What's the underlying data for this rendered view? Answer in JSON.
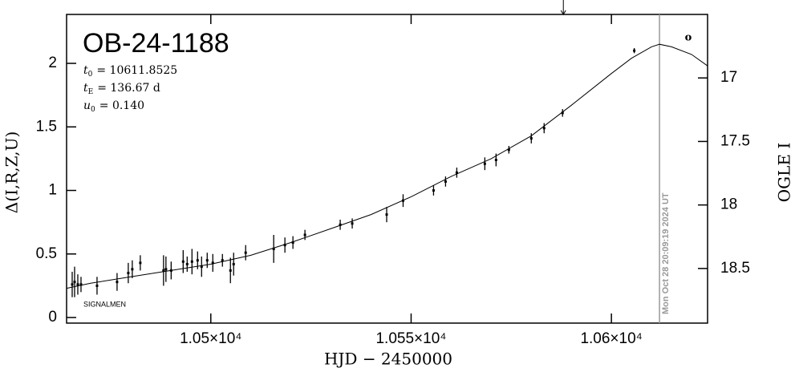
{
  "chart_data": {
    "type": "scatter",
    "title": "OB-24-1188",
    "parameters": [
      {
        "symbol": "t",
        "sub": "0",
        "text": "= 10611.8525"
      },
      {
        "symbol": "t",
        "sub": "E",
        "text": "= 136.67 d"
      },
      {
        "symbol": "u",
        "sub": "0",
        "text": "= 0.140"
      }
    ],
    "x_label": "HJD − 2450000",
    "y_label": "Δ(I,R,Z,U)",
    "y2_label": "OGLE I",
    "observer_label": "SIGNALMEN",
    "corner_mark": "o",
    "xlim": [
      10464,
      10624
    ],
    "xticks": [
      {
        "value": 10500,
        "label": "1.05×10⁴"
      },
      {
        "value": 10550,
        "label": "1.055×10⁴"
      },
      {
        "value": 10600,
        "label": "1.06×10⁴"
      }
    ],
    "ylim": [
      -0.044,
      2.385
    ],
    "yticks": [
      0,
      0.5,
      1,
      1.5,
      2
    ],
    "y2lim": [
      18.93,
      16.5
    ],
    "y2ticks": [
      17,
      17.5,
      18,
      18.5
    ],
    "now_line": {
      "x": 10612,
      "label": "Mon Oct 28 20:09:19 2024 UT",
      "color": "#999999"
    },
    "arrow_x": 10588,
    "series": [
      {
        "name": "data",
        "color": "#000000",
        "x": [
          10465.4,
          10466.0,
          10466.8,
          10467.6,
          10471.6,
          10476.6,
          10479.4,
          10480.4,
          10482.4,
          10488.2,
          10488.8,
          10490.1,
          10493.1,
          10494.1,
          10495.3,
          10496.7,
          10497.7,
          10499.1,
          10500.5,
          10502.9,
          10504.9,
          10505.7,
          10508.7,
          10515.7,
          10518.5,
          10520.5,
          10523.5,
          10532.3,
          10535.3,
          10543.9,
          10548.0,
          10555.6,
          10558.6,
          10561.4,
          10568.4,
          10571.2,
          10574.4,
          10580.0,
          10583.2,
          10587.8,
          10605.7
        ],
        "values": [
          0.26,
          0.28,
          0.26,
          0.26,
          0.25,
          0.28,
          0.35,
          0.38,
          0.43,
          0.37,
          0.38,
          0.37,
          0.44,
          0.42,
          0.44,
          0.45,
          0.4,
          0.45,
          0.43,
          0.45,
          0.37,
          0.42,
          0.51,
          0.54,
          0.57,
          0.59,
          0.65,
          0.73,
          0.74,
          0.81,
          0.92,
          1.0,
          1.07,
          1.14,
          1.21,
          1.24,
          1.32,
          1.41,
          1.49,
          1.61,
          2.1
        ],
        "errors": [
          0.1,
          0.12,
          0.08,
          0.06,
          0.07,
          0.07,
          0.08,
          0.07,
          0.06,
          0.12,
          0.1,
          0.07,
          0.09,
          0.06,
          0.1,
          0.07,
          0.08,
          0.06,
          0.07,
          0.05,
          0.1,
          0.09,
          0.06,
          0.11,
          0.06,
          0.05,
          0.04,
          0.04,
          0.04,
          0.06,
          0.05,
          0.04,
          0.04,
          0.04,
          0.05,
          0.05,
          0.03,
          0.04,
          0.04,
          0.03,
          0.02
        ]
      },
      {
        "name": "model",
        "color": "#000000",
        "x": [
          10464,
          10470,
          10480,
          10490,
          10500,
          10510,
          10520,
          10530,
          10540,
          10550,
          10560,
          10570,
          10580,
          10590,
          10600,
          10605,
          10610,
          10612,
          10615,
          10620,
          10624
        ],
        "values": [
          0.23,
          0.27,
          0.32,
          0.37,
          0.42,
          0.49,
          0.59,
          0.7,
          0.81,
          0.95,
          1.11,
          1.25,
          1.43,
          1.67,
          1.92,
          2.04,
          2.13,
          2.15,
          2.13,
          2.07,
          1.98
        ]
      }
    ]
  }
}
